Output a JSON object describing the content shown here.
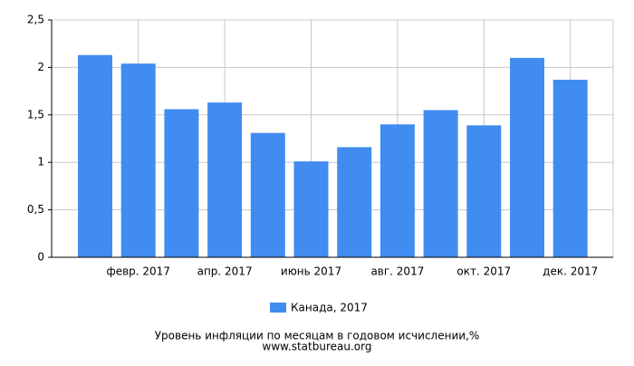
{
  "chart_data": {
    "type": "bar",
    "title": "Уровень инфляции по месяцам в годовом исчислении,%",
    "source": "www.statbureau.org",
    "categories": [
      null,
      "февр. 2017",
      null,
      "апр. 2017",
      null,
      "июнь 2017",
      null,
      "авг. 2017",
      null,
      "окт. 2017",
      null,
      "дек. 2017"
    ],
    "series": [
      {
        "name": "Канада, 2017",
        "color": "#418cf0",
        "values": [
          2.13,
          2.04,
          1.56,
          1.63,
          1.31,
          1.01,
          1.16,
          1.4,
          1.55,
          1.39,
          2.1,
          1.87
        ]
      }
    ],
    "ylim": [
      0,
      2.5
    ],
    "yticks": [
      0,
      {
        "value": 0.5,
        "label": "0,5"
      },
      1,
      {
        "value": 1.5,
        "label": "1,5"
      },
      2,
      {
        "value": 2.5,
        "label": "2,5"
      }
    ],
    "grid": true
  }
}
